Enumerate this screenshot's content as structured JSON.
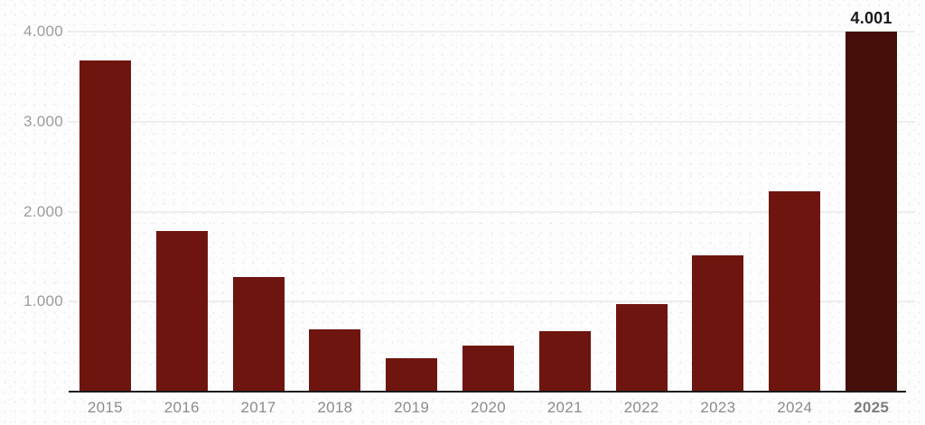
{
  "chart_data": {
    "type": "bar",
    "title": "",
    "xlabel": "",
    "ylabel": "",
    "categories": [
      "2015",
      "2016",
      "2017",
      "2018",
      "2019",
      "2020",
      "2021",
      "2022",
      "2023",
      "2024",
      "2025"
    ],
    "values": [
      3680,
      1780,
      1270,
      690,
      370,
      510,
      670,
      970,
      1510,
      2230,
      4001
    ],
    "highlight_index": 10,
    "value_labels": [
      {
        "index": 10,
        "text": "4.001"
      }
    ],
    "yticks": [
      {
        "value": 1000,
        "label": "1.000"
      },
      {
        "value": 2000,
        "label": "2.000"
      },
      {
        "value": 3000,
        "label": "3.000"
      },
      {
        "value": 4000,
        "label": "4.000"
      }
    ],
    "ylim": [
      0,
      4000
    ],
    "grid": true,
    "legend": "none",
    "colors": {
      "bar": "#6f150f",
      "bar_highlight": "#450e08",
      "gridline": "#ededed",
      "axis_line": "#1a1a1a",
      "ytick_label": "#9c9c9c",
      "xtick_label": "#8c8c8c",
      "xtick_label_highlight": "#7d7d7d",
      "value_label": "#1a1a1a",
      "background": "#fdfdfd"
    }
  }
}
